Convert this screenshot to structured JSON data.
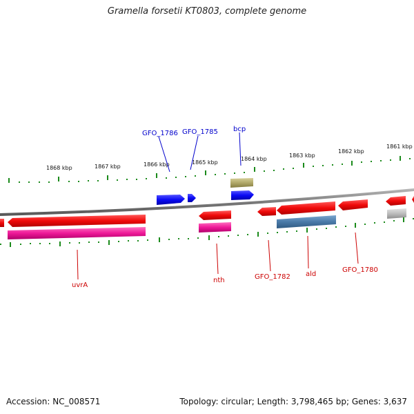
{
  "title": "Gramella forsetii KT0803, complete genome",
  "footer": {
    "accession": "Accession: NC_008571",
    "summary": "Topology: circular; Length: 3,798,465 bp; Genes: 3,637"
  },
  "ticks": [
    "1868 kbp",
    "1867 kbp",
    "1866 kbp",
    "1865 kbp",
    "1864 kbp",
    "1863 kbp",
    "1862 kbp",
    "1861 kbp"
  ],
  "top_genes": [
    "GFO_1786",
    "GFO_1785",
    "bcp"
  ],
  "bottom_genes": [
    "uvrA",
    "nth",
    "GFO_1782",
    "ald",
    "GFO_1780"
  ],
  "colors": {
    "forward_cds": "#0a0af5",
    "reverse_cds": "#f00a0a",
    "forward_feature": "#b0a868",
    "reverse_feature_pink": "#ee1898",
    "reverse_feature_blue": "#4a7aa8",
    "reverse_feature_gray": "#bdbdbd",
    "backbone": "#888888",
    "tick": "#1a8a1a",
    "top_label": "#0000cc",
    "bottom_label": "#cc0000"
  }
}
